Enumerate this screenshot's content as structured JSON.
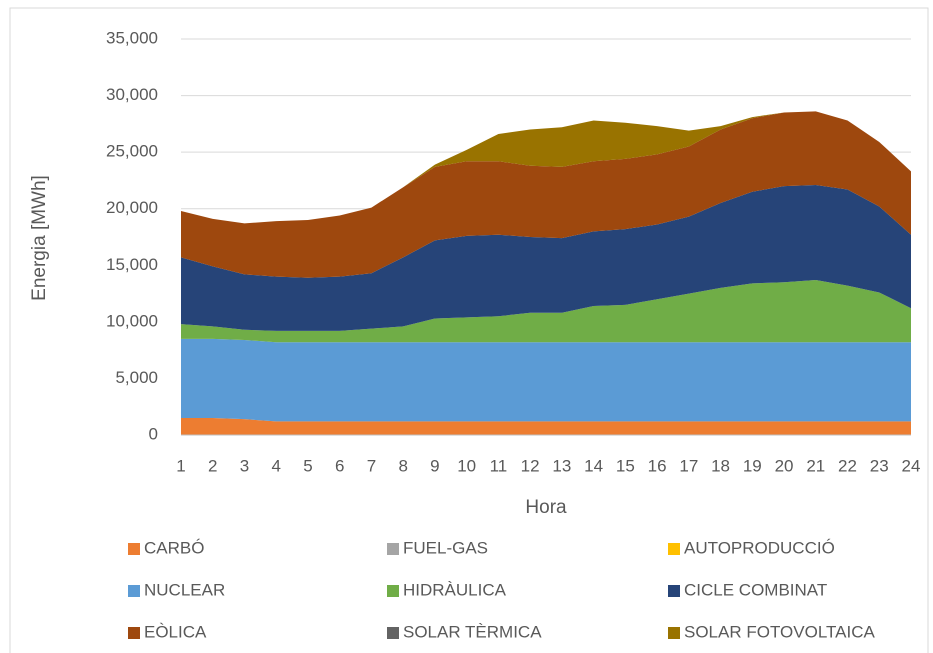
{
  "chart_data": {
    "type": "stacked_area",
    "y_label": "Energia [MWh]",
    "x_label": "Hora",
    "x": [
      1,
      2,
      3,
      4,
      5,
      6,
      7,
      8,
      9,
      10,
      11,
      12,
      13,
      14,
      15,
      16,
      17,
      18,
      19,
      20,
      21,
      22,
      23,
      24
    ],
    "xlim": [
      1,
      24
    ],
    "ylim": [
      0,
      35000
    ],
    "yticks": [
      {
        "value": 0,
        "label": "0"
      },
      {
        "value": 5000,
        "label": "5,000"
      },
      {
        "value": 10000,
        "label": "10,000"
      },
      {
        "value": 15000,
        "label": "15,000"
      },
      {
        "value": 20000,
        "label": "20,000"
      },
      {
        "value": 25000,
        "label": "25,000"
      },
      {
        "value": 30000,
        "label": "30,000"
      },
      {
        "value": 35000,
        "label": "35,000"
      }
    ],
    "grid": true,
    "legend": "bottom",
    "series": [
      {
        "name": "CARBÓ",
        "color": "#ED7D31",
        "values": [
          1500,
          1500,
          1400,
          1200,
          1200,
          1200,
          1200,
          1200,
          1200,
          1200,
          1200,
          1200,
          1200,
          1200,
          1200,
          1200,
          1200,
          1200,
          1200,
          1200,
          1200,
          1200,
          1200,
          1200
        ]
      },
      {
        "name": "FUEL-GAS",
        "color": "#A5A5A5",
        "values": [
          0,
          0,
          0,
          0,
          0,
          0,
          0,
          0,
          0,
          0,
          0,
          0,
          0,
          0,
          0,
          0,
          0,
          0,
          0,
          0,
          0,
          0,
          0,
          0
        ]
      },
      {
        "name": "AUTOPRODUCCIÓ",
        "color": "#FFC000",
        "values": [
          0,
          0,
          0,
          0,
          0,
          0,
          0,
          0,
          0,
          0,
          0,
          0,
          0,
          0,
          0,
          0,
          0,
          0,
          0,
          0,
          0,
          0,
          0,
          0
        ]
      },
      {
        "name": "NUCLEAR",
        "color": "#5B9BD5",
        "values": [
          7000,
          7000,
          7000,
          7000,
          7000,
          7000,
          7000,
          7000,
          7000,
          7000,
          7000,
          7000,
          7000,
          7000,
          7000,
          7000,
          7000,
          7000,
          7000,
          7000,
          7000,
          7000,
          7000,
          7000
        ]
      },
      {
        "name": "HIDRÀULICA",
        "color": "#70AD47",
        "values": [
          1300,
          1100,
          900,
          1000,
          1000,
          1000,
          1200,
          1400,
          2100,
          2200,
          2300,
          2600,
          2600,
          3200,
          3300,
          3800,
          4300,
          4800,
          5200,
          5300,
          5500,
          5000,
          4400,
          3000
        ]
      },
      {
        "name": "CICLE COMBINAT",
        "color": "#264478",
        "values": [
          5900,
          5300,
          4900,
          4800,
          4700,
          4800,
          4900,
          6100,
          6900,
          7200,
          7200,
          6700,
          6600,
          6600,
          6700,
          6600,
          6800,
          7500,
          8100,
          8500,
          8400,
          8500,
          7600,
          6500
        ]
      },
      {
        "name": "EÒLICA",
        "color": "#9E480E",
        "values": [
          4100,
          4200,
          4500,
          4900,
          5100,
          5400,
          5800,
          6200,
          6500,
          6600,
          6500,
          6300,
          6300,
          6200,
          6200,
          6200,
          6200,
          6500,
          6500,
          6500,
          6500,
          6100,
          5700,
          5600
        ]
      },
      {
        "name": "SOLAR TÈRMICA",
        "color": "#636363",
        "values": [
          0,
          0,
          0,
          0,
          0,
          0,
          0,
          0,
          0,
          0,
          0,
          0,
          0,
          0,
          0,
          0,
          0,
          0,
          0,
          0,
          0,
          0,
          0,
          0
        ]
      },
      {
        "name": "SOLAR FOTOVOLTAICA",
        "color": "#997300",
        "values": [
          0,
          0,
          0,
          0,
          0,
          0,
          0,
          0,
          200,
          1000,
          2400,
          3200,
          3500,
          3600,
          3200,
          2500,
          1400,
          300,
          100,
          0,
          0,
          0,
          0,
          0
        ]
      }
    ]
  }
}
